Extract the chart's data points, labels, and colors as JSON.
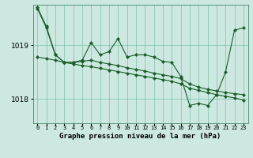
{
  "xlabel": "Graphe pression niveau de la mer (hPa)",
  "background_color": "#cce8e0",
  "grid_color": "#66bb99",
  "line_color": "#1a5c2a",
  "x_ticks": [
    0,
    1,
    2,
    3,
    4,
    5,
    6,
    7,
    8,
    9,
    10,
    11,
    12,
    13,
    14,
    15,
    16,
    17,
    18,
    19,
    20,
    21,
    22,
    23
  ],
  "ylim": [
    1017.55,
    1019.75
  ],
  "yticks": [
    1018,
    1019
  ],
  "series_jagged": [
    1019.7,
    1019.35,
    1018.82,
    1018.68,
    1018.68,
    1018.72,
    1019.05,
    1018.82,
    1018.88,
    1019.12,
    1018.78,
    1018.82,
    1018.82,
    1018.78,
    1018.7,
    1018.68,
    1018.42,
    1017.88,
    1017.92,
    1017.88,
    1018.08,
    1018.5,
    1019.28,
    1019.32
  ],
  "series_smooth1": [
    1019.68,
    1019.32,
    1018.82,
    1018.68,
    1018.68,
    1018.7,
    1018.72,
    1018.68,
    1018.65,
    1018.62,
    1018.58,
    1018.55,
    1018.52,
    1018.48,
    1018.45,
    1018.42,
    1018.38,
    1018.28,
    1018.22,
    1018.18,
    1018.15,
    1018.12,
    1018.1,
    1018.08
  ],
  "series_smooth2": [
    1018.78,
    1018.75,
    1018.72,
    1018.68,
    1018.65,
    1018.62,
    1018.6,
    1018.57,
    1018.54,
    1018.51,
    1018.48,
    1018.45,
    1018.42,
    1018.39,
    1018.36,
    1018.33,
    1018.28,
    1018.2,
    1018.16,
    1018.12,
    1018.08,
    1018.05,
    1018.02,
    1017.98
  ]
}
